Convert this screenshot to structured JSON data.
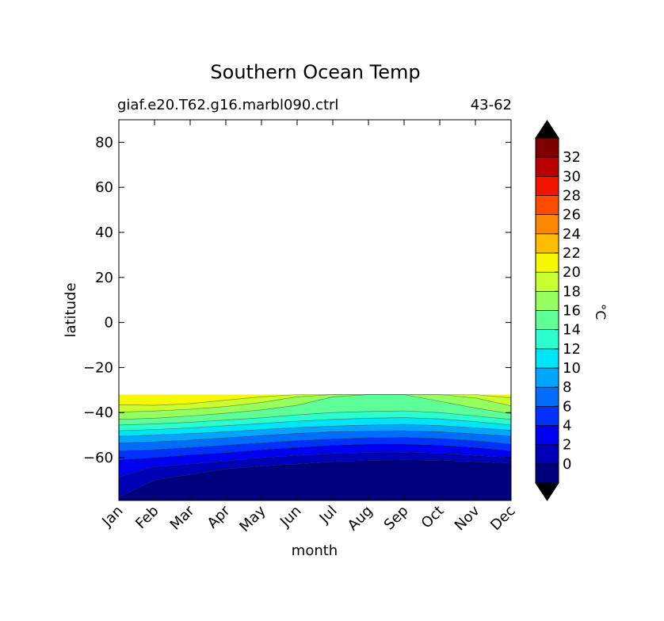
{
  "chart_data": {
    "type": "contour",
    "title": "Southern Ocean Temp",
    "subtitle_left": "giaf.e20.T62.g16.marbl090.ctrl",
    "subtitle_right": "43-62",
    "xlabel": "month",
    "ylabel": "latitude",
    "x_categories": [
      "Jan",
      "Feb",
      "Mar",
      "Apr",
      "May",
      "Jun",
      "Jul",
      "Aug",
      "Sep",
      "Oct",
      "Nov",
      "Dec"
    ],
    "ylim": [
      -79,
      90
    ],
    "y_ticks": [
      80,
      60,
      40,
      20,
      0,
      -20,
      -40,
      -60
    ],
    "y_tick_labels": [
      "80",
      "60",
      "40",
      "20",
      "0",
      "−20",
      "−40",
      "−60"
    ],
    "data_lat_range": [
      -79,
      -32
    ],
    "colorbar": {
      "label": "°C",
      "levels": [
        -2,
        0,
        2,
        4,
        6,
        8,
        10,
        12,
        14,
        16,
        18,
        20,
        22,
        24,
        26,
        28,
        30,
        32,
        34
      ],
      "tick_labels": [
        "0",
        "2",
        "4",
        "6",
        "8",
        "10",
        "12",
        "14",
        "16",
        "18",
        "20",
        "22",
        "24",
        "26",
        "28",
        "30",
        "32"
      ],
      "colors": [
        "#00007f",
        "#0000b6",
        "#0000f1",
        "#0031ff",
        "#006dff",
        "#00a5ff",
        "#00e4f7",
        "#2bffce",
        "#5fff97",
        "#96ff60",
        "#c8ff2e",
        "#f5f800",
        "#ffbd00",
        "#ff8600",
        "#ff4b00",
        "#f21400",
        "#b80000",
        "#7f0000"
      ],
      "extend": "both",
      "under_color": "#000000",
      "over_color": "#000000"
    },
    "temperature_by_month": {
      "note_columns": "approx. latitude of isotherm boundary (degrees) per month Jan..Dec",
      "isotherms": [
        {
          "level": 0,
          "lat": [
            -77.5,
            -70,
            -67.5,
            -65,
            -63.8,
            -62.8,
            -61.8,
            -61.2,
            -61,
            -61.2,
            -61.8,
            -62.5
          ]
        },
        {
          "level": 2,
          "lat": [
            -68.5,
            -64,
            -62.8,
            -61.5,
            -60,
            -59,
            -58.2,
            -57.8,
            -57.6,
            -58,
            -59,
            -60
          ]
        },
        {
          "level": 4,
          "lat": [
            -61,
            -60,
            -58.8,
            -57.8,
            -56.5,
            -55.5,
            -54.5,
            -54,
            -54,
            -54.5,
            -55.5,
            -57
          ]
        },
        {
          "level": 6,
          "lat": [
            -57,
            -56.5,
            -55.5,
            -54.5,
            -53.5,
            -52.5,
            -51.7,
            -51.2,
            -51,
            -51.5,
            -52.5,
            -54
          ]
        },
        {
          "level": 8,
          "lat": [
            -53.5,
            -53,
            -52.2,
            -51.2,
            -50.2,
            -49.2,
            -48.5,
            -48.2,
            -48,
            -48.5,
            -49.5,
            -50.5
          ]
        },
        {
          "level": 10,
          "lat": [
            -50.5,
            -50,
            -49.3,
            -48.5,
            -47.5,
            -46.6,
            -46,
            -45.5,
            -45.2,
            -45.8,
            -46.8,
            -47.8
          ]
        },
        {
          "level": 12,
          "lat": [
            -48,
            -47.5,
            -46.8,
            -45.8,
            -44.8,
            -43.8,
            -43,
            -42.5,
            -42.2,
            -42.8,
            -44,
            -45.5
          ]
        },
        {
          "level": 14,
          "lat": [
            -45.5,
            -45,
            -44.3,
            -43.3,
            -42.3,
            -41,
            -40,
            -39.5,
            -39.2,
            -40,
            -41.5,
            -43
          ]
        },
        {
          "level": 16,
          "lat": [
            -43,
            -42.5,
            -41.5,
            -40.3,
            -38.8,
            -36.8,
            -33,
            -32,
            -32,
            -35,
            -38,
            -40.5
          ]
        },
        {
          "level": 18,
          "lat": [
            -39.8,
            -39.3,
            -38.5,
            -37.3,
            -35.5,
            -33,
            -32,
            -32,
            -32,
            -32,
            -33.5,
            -37
          ]
        },
        {
          "level": 20,
          "lat": [
            -36.5,
            -36.8,
            -36,
            -34.5,
            -33,
            -32,
            -32,
            -32,
            -32,
            -32,
            -32,
            -33.5
          ]
        }
      ]
    }
  }
}
